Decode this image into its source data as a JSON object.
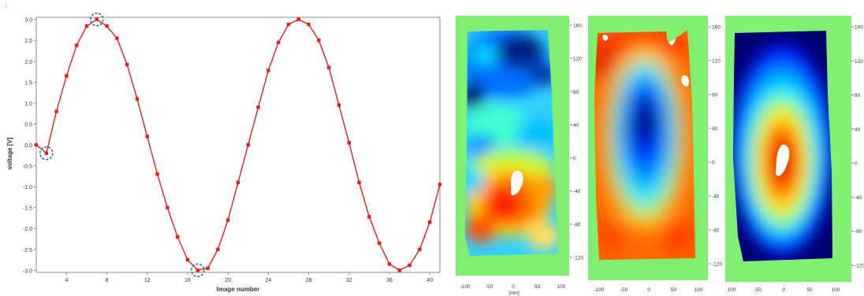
{
  "chart_data": [
    {
      "type": "line",
      "xlabel": "Image number",
      "ylabel": "voltage [V]",
      "xlim": [
        1,
        41
      ],
      "ylim": [
        -3.05,
        3.05
      ],
      "x_ticks": [
        "4",
        "8",
        "12",
        "16",
        "20",
        "24",
        "28",
        "32",
        "36",
        "40"
      ],
      "y_ticks": [
        "3.0",
        "2.5",
        "2.0",
        "1.5",
        "1.0",
        "0.5",
        "0.0",
        "-0.5",
        "-1.0",
        "-1.5",
        "-2.0",
        "-2.5",
        "-3.0"
      ],
      "grid": false,
      "series": [
        {
          "color": "#e0201c",
          "x": [
            1,
            2,
            3,
            4,
            5,
            6,
            7,
            8,
            9,
            10,
            11,
            12,
            13,
            14,
            15,
            16,
            17,
            18,
            19,
            20,
            21,
            22,
            23,
            24,
            25,
            26,
            27,
            28,
            29,
            30,
            31,
            32,
            33,
            34,
            35,
            36,
            37,
            38,
            39,
            40,
            41
          ],
          "values": [
            0.0,
            -0.2,
            0.8,
            1.65,
            2.38,
            2.84,
            3.0,
            2.84,
            2.55,
            1.92,
            1.1,
            0.2,
            -0.7,
            -1.5,
            -2.2,
            -2.75,
            -3.0,
            -2.95,
            -2.5,
            -1.8,
            -0.9,
            0.0,
            0.9,
            1.78,
            2.45,
            2.88,
            3.0,
            2.88,
            2.5,
            1.85,
            0.95,
            0.05,
            -0.9,
            -1.72,
            -2.35,
            -2.85,
            -3.0,
            -2.88,
            -2.5,
            -1.85,
            -0.95
          ]
        }
      ],
      "highlighted_points": [
        {
          "x": 2,
          "y": -0.2
        },
        {
          "x": 7,
          "y": 3.0
        },
        {
          "x": 17,
          "y": -3.0
        }
      ],
      "highlight_color": "#2f5fa0"
    },
    {
      "type": "heatmap",
      "panels": [
        {
          "x_ticks": [
            "-100",
            "-50",
            "0",
            "50",
            "100"
          ],
          "x_unit": "[mm]",
          "y_ticks": [
            "160",
            "120",
            "80",
            "40",
            "0",
            "-40",
            "-80",
            "-120"
          ],
          "pattern": "noisy field, high (red) region in lower middle, low (blue) region at top"
        },
        {
          "x_ticks": [
            "-100",
            "-50",
            "0",
            "50",
            "100"
          ],
          "y_ticks": [
            "160",
            "120",
            "80",
            "40",
            "0",
            "-40",
            "-80",
            "-120"
          ],
          "pattern": "low (dark blue) center, high (red) edges"
        },
        {
          "x_ticks": [
            "100",
            "-50",
            "0",
            "50",
            "100"
          ],
          "y_ticks": [
            "160",
            "120",
            "80",
            "40",
            "0",
            "-40",
            "-80",
            "-120"
          ],
          "pattern": "high (red) center with hole, low (dark blue) edges"
        }
      ],
      "colormap": [
        "#000080",
        "#0000ff",
        "#00a0ff",
        "#00ffff",
        "#80ff80",
        "#ffff00",
        "#ff8000",
        "#ff0000",
        "#800000"
      ],
      "background_color": "#80ee70"
    }
  ]
}
